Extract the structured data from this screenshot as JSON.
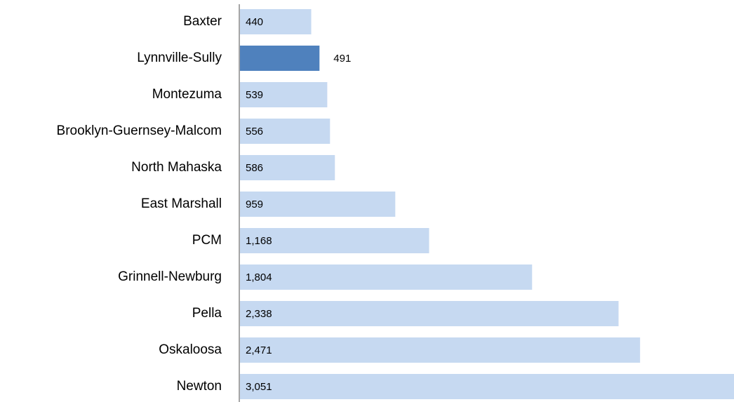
{
  "chart_data": {
    "type": "hbar",
    "categories": [
      "Baxter",
      "Lynnville-Sully",
      "Montezuma",
      "Brooklyn-Guernsey-Malcom",
      "North Mahaska",
      "East Marshall",
      "PCM",
      "Grinnell-Newburg",
      "Pella",
      "Oskaloosa",
      "Newton"
    ],
    "values": [
      440,
      491,
      539,
      556,
      586,
      959,
      1168,
      1804,
      2338,
      2471,
      3051
    ],
    "value_labels": [
      "440",
      "491",
      "539",
      "556",
      "586",
      "959",
      "1,168",
      "1,804",
      "2,338",
      "2,471",
      "3,051"
    ],
    "colors": [
      "#c6d9f1",
      "#4f81bd",
      "#c6d9f1",
      "#c6d9f1",
      "#c6d9f1",
      "#c6d9f1",
      "#c6d9f1",
      "#c6d9f1",
      "#c6d9f1",
      "#c6d9f1",
      "#c6d9f1"
    ]
  }
}
